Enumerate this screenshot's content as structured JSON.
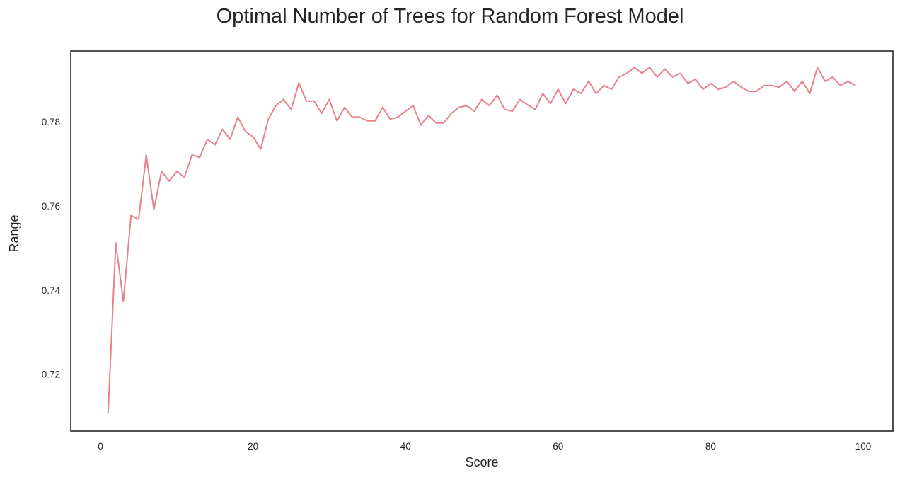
{
  "chart_data": {
    "type": "line",
    "title": "Optimal Number of Trees for Random Forest Model",
    "xlabel": "Score",
    "ylabel": "Range",
    "xlim": [
      -3.9,
      103.9
    ],
    "ylim": [
      0.7065,
      0.7968
    ],
    "xticks": [
      0,
      20,
      40,
      60,
      80,
      100
    ],
    "yticks": [
      0.72,
      0.74,
      0.76,
      0.78
    ],
    "xtick_labels": [
      "0",
      "20",
      "40",
      "60",
      "80",
      "100"
    ],
    "ytick_labels": [
      "0.72",
      "0.74",
      "0.76",
      "0.78"
    ],
    "grid": false,
    "legend": "none",
    "line_color": "#e8828a",
    "series": [
      {
        "x": [
          1,
          2,
          3,
          4,
          5,
          6,
          7,
          8,
          9,
          10,
          11,
          12,
          13,
          14,
          15,
          16,
          17,
          18,
          19,
          20,
          21,
          22,
          23,
          24,
          25,
          26,
          27,
          28,
          29,
          30,
          31,
          32,
          33,
          34,
          35,
          36,
          37,
          38,
          39,
          40,
          41,
          42,
          43,
          44,
          45,
          46,
          47,
          48,
          49,
          50,
          51,
          52,
          53,
          54,
          55,
          56,
          57,
          58,
          59,
          60,
          61,
          62,
          63,
          64,
          65,
          66,
          67,
          68,
          69,
          70,
          71,
          72,
          73,
          74,
          75,
          76,
          77,
          78,
          79,
          80,
          81,
          82,
          83,
          84,
          85,
          86,
          87,
          88,
          89,
          90,
          91,
          92,
          93,
          94,
          95,
          96,
          97,
          98,
          99
        ],
        "values": [
          0.7107,
          0.7512,
          0.7373,
          0.7577,
          0.7568,
          0.7721,
          0.7591,
          0.7682,
          0.7659,
          0.7682,
          0.7668,
          0.7721,
          0.7715,
          0.7758,
          0.7745,
          0.7782,
          0.7758,
          0.7811,
          0.7777,
          0.7764,
          0.7735,
          0.7806,
          0.7838,
          0.7853,
          0.7829,
          0.7892,
          0.7849,
          0.7849,
          0.782,
          0.7853,
          0.7802,
          0.7834,
          0.7811,
          0.7811,
          0.7802,
          0.7802,
          0.7834,
          0.7806,
          0.7811,
          0.7825,
          0.7838,
          0.7792,
          0.7815,
          0.7797,
          0.7797,
          0.782,
          0.7834,
          0.7838,
          0.7825,
          0.7853,
          0.7838,
          0.7863,
          0.7829,
          0.7825,
          0.7853,
          0.784,
          0.7829,
          0.7867,
          0.7843,
          0.7877,
          0.7843,
          0.7877,
          0.7867,
          0.7896,
          0.7867,
          0.7886,
          0.7877,
          0.7906,
          0.7915,
          0.7929,
          0.7915,
          0.7929,
          0.7906,
          0.7925,
          0.7906,
          0.7915,
          0.7891,
          0.7901,
          0.7877,
          0.7891,
          0.7877,
          0.7882,
          0.7896,
          0.7882,
          0.7872,
          0.7872,
          0.7886,
          0.7886,
          0.7882,
          0.7896,
          0.7872,
          0.7896,
          0.7867,
          0.7929,
          0.7896,
          0.7906,
          0.7886,
          0.7896,
          0.7886
        ]
      }
    ]
  }
}
